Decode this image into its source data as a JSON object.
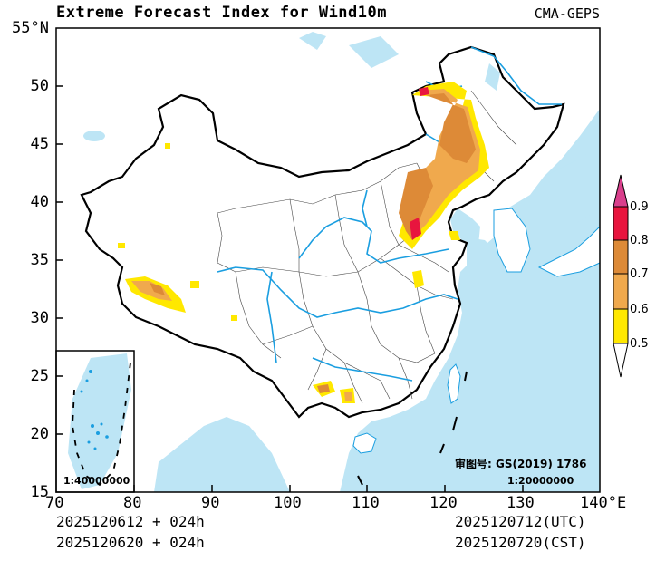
{
  "title": "Extreme Forecast Index for Wind10m",
  "source": "CMA-GEPS",
  "lat_labels": [
    "55°N",
    "50",
    "45",
    "40",
    "35",
    "30",
    "25",
    "20",
    "15"
  ],
  "lon_labels": [
    "70",
    "80",
    "90",
    "100",
    "110",
    "120",
    "130",
    "140°E"
  ],
  "colorbar": {
    "labels": [
      "0.9",
      "0.8",
      "0.7",
      "0.6",
      "0.5"
    ],
    "colors": [
      "#d93f8c",
      "#e8153e",
      "#dd8a37",
      "#f0a94d",
      "#ffe800",
      "#ffffff"
    ]
  },
  "map": {
    "approval_label": "审图号: GS(2019) 1786",
    "scale_main": "1:20000000",
    "scale_inset": "1:40000000",
    "ocean_color": "#bde5f5",
    "river_color": "#1a9ee0",
    "border_color": "#000000"
  },
  "footer": {
    "init_utc": "2025120612 + 024h",
    "init_cst": "2025120620 + 024h",
    "valid_utc": "2025120712(UTC)",
    "valid_cst": "2025120720(CST)"
  }
}
